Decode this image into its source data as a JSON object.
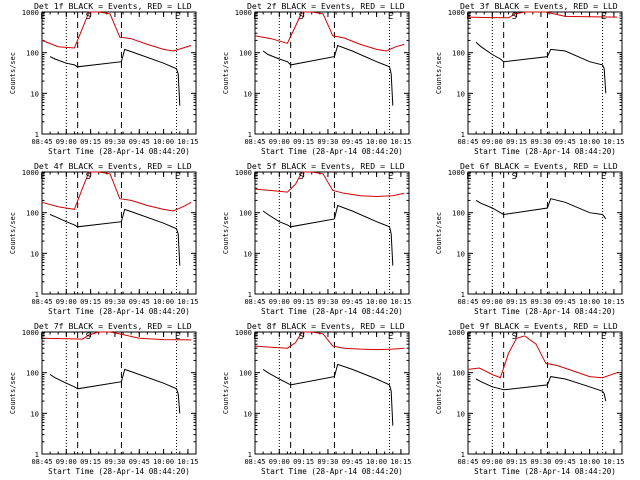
{
  "chart_data": [
    {
      "type": "line",
      "title": "Det 1f BLACK = Events, RED = LLD",
      "xlabel": "Start Time (28-Apr-14 08:44:20)",
      "ylabel": "Counts/sec",
      "xticks": [
        "08:45",
        "09:00",
        "09:15",
        "09:30",
        "09:45",
        "10:00",
        "10:15"
      ],
      "yticks": [
        "1",
        "10",
        "100",
        "1000"
      ],
      "ylim": [
        1,
        1000
      ],
      "log_y": true,
      "markers": [
        {
          "label": "E",
          "x": "08:45"
        },
        {
          "label": "S",
          "x": "09:13"
        },
        {
          "label": "E",
          "x": "10:08"
        }
      ],
      "dotted_lines": [
        "09:00",
        "10:08"
      ],
      "dashed_lines": [
        "09:07",
        "09:34"
      ],
      "series": [
        {
          "color": "#d40000",
          "x": [
            "08:45",
            "08:55",
            "09:05",
            "09:10",
            "09:14",
            "09:20",
            "09:27",
            "09:33",
            "09:40",
            "09:50",
            "10:00",
            "10:06",
            "10:12",
            "10:17"
          ],
          "values": [
            200,
            140,
            130,
            400,
            1000,
            1000,
            900,
            240,
            220,
            160,
            120,
            110,
            130,
            150
          ]
        },
        {
          "color": "#000000",
          "x": [
            "08:50",
            "08:53",
            "09:00",
            "09:05",
            "09:07",
            "09:34",
            "09:36",
            "09:45",
            "10:00",
            "10:08",
            "10:09",
            "10:10"
          ],
          "values": [
            80,
            70,
            55,
            50,
            45,
            60,
            120,
            90,
            55,
            40,
            30,
            5
          ]
        }
      ]
    },
    {
      "type": "line",
      "title": "Det 2f BLACK = Events, RED = LLD",
      "xlabel": "Start Time (28-Apr-14 08:44:20)",
      "ylabel": "Counts/sec",
      "xticks": [
        "08:45",
        "09:00",
        "09:15",
        "09:30",
        "09:45",
        "10:00",
        "10:15"
      ],
      "yticks": [
        "1",
        "10",
        "100",
        "1000"
      ],
      "ylim": [
        1,
        1000
      ],
      "log_y": true,
      "markers": [
        {
          "label": "E",
          "x": "08:45"
        },
        {
          "label": "S",
          "x": "09:13"
        },
        {
          "label": "E",
          "x": "10:08"
        }
      ],
      "dotted_lines": [
        "09:00",
        "10:08"
      ],
      "dashed_lines": [
        "09:07",
        "09:34"
      ],
      "series": [
        {
          "color": "#d40000",
          "x": [
            "08:45",
            "08:55",
            "09:05",
            "09:10",
            "09:14",
            "09:20",
            "09:27",
            "09:33",
            "09:40",
            "09:50",
            "10:00",
            "10:06",
            "10:12",
            "10:17"
          ],
          "values": [
            260,
            220,
            170,
            450,
            1000,
            1000,
            900,
            260,
            230,
            160,
            120,
            110,
            140,
            160
          ]
        },
        {
          "color": "#000000",
          "x": [
            "08:50",
            "08:53",
            "09:00",
            "09:05",
            "09:07",
            "09:34",
            "09:36",
            "09:45",
            "10:00",
            "10:08",
            "10:09",
            "10:10"
          ],
          "values": [
            110,
            90,
            70,
            60,
            50,
            80,
            150,
            110,
            60,
            45,
            30,
            5
          ]
        }
      ]
    },
    {
      "type": "line",
      "title": "Det 3f BLACK = Events, RED = LLD",
      "xlabel": "Start Time (28-Apr-14 08:44:20)",
      "ylabel": "Counts/sec",
      "xticks": [
        "08:45",
        "09:00",
        "09:15",
        "09:30",
        "09:45",
        "10:00",
        "10:15"
      ],
      "yticks": [
        "1",
        "10",
        "100",
        "1000"
      ],
      "ylim": [
        1,
        1000
      ],
      "log_y": true,
      "markers": [
        {
          "label": "E",
          "x": "08:45"
        },
        {
          "label": "S",
          "x": "09:13"
        },
        {
          "label": "E",
          "x": "10:08"
        }
      ],
      "dotted_lines": [
        "09:00",
        "10:08"
      ],
      "dashed_lines": [
        "09:07",
        "09:34"
      ],
      "series": [
        {
          "color": "#d40000",
          "x": [
            "08:45",
            "09:00",
            "09:10",
            "09:14",
            "09:20",
            "09:27",
            "09:33",
            "09:45",
            "10:00",
            "10:17"
          ],
          "values": [
            750,
            730,
            720,
            900,
            1000,
            1000,
            1000,
            780,
            760,
            750
          ]
        },
        {
          "color": "#000000",
          "x": [
            "08:50",
            "08:53",
            "09:00",
            "09:05",
            "09:07",
            "09:34",
            "09:36",
            "09:45",
            "10:00",
            "10:08",
            "10:09",
            "10:10"
          ],
          "values": [
            180,
            140,
            90,
            70,
            60,
            80,
            120,
            110,
            60,
            50,
            40,
            10
          ]
        }
      ]
    },
    {
      "type": "line",
      "title": "Det 4f BLACK = Events, RED = LLD",
      "xlabel": "Start Time (28-Apr-14 08:44:20)",
      "ylabel": "Counts/sec",
      "xticks": [
        "08:45",
        "09:00",
        "09:15",
        "09:30",
        "09:45",
        "10:00",
        "10:15"
      ],
      "yticks": [
        "1",
        "10",
        "100",
        "1000"
      ],
      "ylim": [
        1,
        1000
      ],
      "log_y": true,
      "markers": [
        {
          "label": "E",
          "x": "08:45"
        },
        {
          "label": "S",
          "x": "09:13"
        },
        {
          "label": "E",
          "x": "10:08"
        }
      ],
      "dotted_lines": [
        "09:00",
        "10:08"
      ],
      "dashed_lines": [
        "09:07",
        "09:34"
      ],
      "series": [
        {
          "color": "#d40000",
          "x": [
            "08:45",
            "08:55",
            "09:05",
            "09:10",
            "09:14",
            "09:20",
            "09:27",
            "09:33",
            "09:40",
            "09:50",
            "10:00",
            "10:06",
            "10:12",
            "10:17"
          ],
          "values": [
            180,
            140,
            120,
            400,
            1000,
            1000,
            900,
            220,
            200,
            150,
            120,
            110,
            140,
            180
          ]
        },
        {
          "color": "#000000",
          "x": [
            "08:50",
            "08:53",
            "09:00",
            "09:05",
            "09:07",
            "09:34",
            "09:36",
            "09:45",
            "10:00",
            "10:08",
            "10:09",
            "10:10"
          ],
          "values": [
            90,
            80,
            60,
            50,
            45,
            60,
            120,
            90,
            55,
            40,
            30,
            5
          ]
        }
      ]
    },
    {
      "type": "line",
      "title": "Det 5f BLACK = Events, RED = LLD",
      "xlabel": "Start Time (28-Apr-14 08:44:20)",
      "ylabel": "Counts/sec",
      "xticks": [
        "08:45",
        "09:00",
        "09:15",
        "09:30",
        "09:45",
        "10:00",
        "10:15"
      ],
      "yticks": [
        "1",
        "10",
        "100",
        "1000"
      ],
      "ylim": [
        1,
        1000
      ],
      "log_y": true,
      "markers": [
        {
          "label": "E",
          "x": "08:45"
        },
        {
          "label": "S",
          "x": "09:13"
        },
        {
          "label": "E",
          "x": "10:08"
        }
      ],
      "dotted_lines": [
        "09:00",
        "10:08"
      ],
      "dashed_lines": [
        "09:07",
        "09:34"
      ],
      "series": [
        {
          "color": "#d40000",
          "x": [
            "08:45",
            "08:55",
            "09:05",
            "09:10",
            "09:14",
            "09:20",
            "09:27",
            "09:33",
            "09:40",
            "09:50",
            "10:00",
            "10:10",
            "10:17"
          ],
          "values": [
            380,
            350,
            320,
            500,
            1000,
            1000,
            900,
            350,
            300,
            260,
            250,
            260,
            300
          ]
        },
        {
          "color": "#000000",
          "x": [
            "08:50",
            "08:53",
            "09:00",
            "09:05",
            "09:07",
            "09:34",
            "09:36",
            "09:45",
            "10:00",
            "10:08",
            "10:09",
            "10:10"
          ],
          "values": [
            110,
            90,
            60,
            50,
            45,
            70,
            150,
            110,
            60,
            45,
            30,
            5
          ]
        }
      ]
    },
    {
      "type": "line",
      "title": "Det 6f BLACK = Events, RED = LLD",
      "xlabel": "Start Time (28-Apr-14 08:44:20)",
      "ylabel": "Counts/sec",
      "xticks": [
        "08:45",
        "09:00",
        "09:15",
        "09:30",
        "09:45",
        "10:00",
        "10:15"
      ],
      "yticks": [
        "1",
        "10",
        "100",
        "1000"
      ],
      "ylim": [
        1,
        1000
      ],
      "log_y": true,
      "markers": [
        {
          "label": "E",
          "x": "08:45"
        },
        {
          "label": "S",
          "x": "09:13"
        },
        {
          "label": "E",
          "x": "10:08"
        }
      ],
      "dotted_lines": [
        "09:00",
        "10:08"
      ],
      "dashed_lines": [
        "09:07",
        "09:34"
      ],
      "series": [
        {
          "color": "#000000",
          "x": [
            "08:50",
            "08:53",
            "09:00",
            "09:05",
            "09:07",
            "09:34",
            "09:36",
            "09:45",
            "10:00",
            "10:08",
            "10:09",
            "10:10"
          ],
          "values": [
            200,
            170,
            130,
            100,
            90,
            130,
            220,
            180,
            100,
            90,
            80,
            70
          ]
        }
      ]
    },
    {
      "type": "line",
      "title": "Det 7f BLACK = Events, RED = LLD",
      "xlabel": "Start Time (28-Apr-14 08:44:20)",
      "ylabel": "Counts/sec",
      "xticks": [
        "08:45",
        "09:00",
        "09:15",
        "09:30",
        "09:45",
        "10:00",
        "10:15"
      ],
      "yticks": [
        "1",
        "10",
        "100",
        "1000"
      ],
      "ylim": [
        1,
        1000
      ],
      "log_y": true,
      "markers": [
        {
          "label": "E",
          "x": "08:45"
        },
        {
          "label": "S",
          "x": "09:13"
        },
        {
          "label": "E",
          "x": "10:08"
        }
      ],
      "dotted_lines": [
        "09:00",
        "10:08"
      ],
      "dashed_lines": [
        "09:07",
        "09:34"
      ],
      "series": [
        {
          "color": "#d40000",
          "x": [
            "08:45",
            "09:00",
            "09:10",
            "09:14",
            "09:20",
            "09:27",
            "09:33",
            "09:45",
            "10:00",
            "10:17"
          ],
          "values": [
            700,
            680,
            670,
            850,
            1000,
            1000,
            900,
            700,
            650,
            640
          ]
        },
        {
          "color": "#000000",
          "x": [
            "08:50",
            "08:53",
            "09:00",
            "09:05",
            "09:07",
            "09:34",
            "09:36",
            "09:45",
            "10:00",
            "10:08",
            "10:09",
            "10:10"
          ],
          "values": [
            90,
            75,
            55,
            45,
            40,
            60,
            120,
            90,
            55,
            40,
            30,
            10
          ]
        }
      ]
    },
    {
      "type": "line",
      "title": "Det 8f BLACK = Events, RED = LLD",
      "xlabel": "Start Time (28-Apr-14 08:44:20)",
      "ylabel": "Counts/sec",
      "xticks": [
        "08:45",
        "09:00",
        "09:15",
        "09:30",
        "09:45",
        "10:00",
        "10:15"
      ],
      "yticks": [
        "1",
        "10",
        "100",
        "1000"
      ],
      "ylim": [
        1,
        1000
      ],
      "log_y": true,
      "markers": [
        {
          "label": "E",
          "x": "08:45"
        },
        {
          "label": "S",
          "x": "09:13"
        },
        {
          "label": "E",
          "x": "10:08"
        }
      ],
      "dotted_lines": [
        "09:00",
        "10:08"
      ],
      "dashed_lines": [
        "09:07",
        "09:34"
      ],
      "series": [
        {
          "color": "#d40000",
          "x": [
            "08:45",
            "08:55",
            "09:05",
            "09:10",
            "09:14",
            "09:20",
            "09:27",
            "09:33",
            "09:40",
            "09:50",
            "10:00",
            "10:10",
            "10:17"
          ],
          "values": [
            450,
            420,
            400,
            550,
            1000,
            1000,
            900,
            450,
            400,
            380,
            370,
            380,
            400
          ]
        },
        {
          "color": "#000000",
          "x": [
            "08:50",
            "08:53",
            "09:00",
            "09:05",
            "09:07",
            "09:34",
            "09:36",
            "09:45",
            "10:00",
            "10:08",
            "10:09",
            "10:10"
          ],
          "values": [
            120,
            100,
            70,
            55,
            50,
            80,
            160,
            120,
            70,
            50,
            35,
            5
          ]
        }
      ]
    },
    {
      "type": "line",
      "title": "Det 9f BLACK = Events, RED = LLD",
      "xlabel": "Start Time (28-Apr-14 08:44:20)",
      "ylabel": "Counts/sec",
      "xticks": [
        "08:45",
        "09:00",
        "09:15",
        "09:30",
        "09:45",
        "10:00",
        "10:15"
      ],
      "yticks": [
        "1",
        "10",
        "100",
        "1000"
      ],
      "ylim": [
        1,
        1000
      ],
      "log_y": true,
      "markers": [
        {
          "label": "E",
          "x": "08:45"
        },
        {
          "label": "S",
          "x": "09:13"
        },
        {
          "label": "E",
          "x": "10:08"
        }
      ],
      "dotted_lines": [
        "09:00",
        "10:08"
      ],
      "dashed_lines": [
        "09:07",
        "09:34"
      ],
      "series": [
        {
          "color": "#d40000",
          "x": [
            "08:45",
            "08:52",
            "09:00",
            "09:05",
            "09:10",
            "09:15",
            "09:20",
            "09:27",
            "09:33",
            "09:40",
            "09:50",
            "10:00",
            "10:08",
            "10:17"
          ],
          "values": [
            120,
            130,
            90,
            75,
            300,
            700,
            800,
            500,
            170,
            150,
            110,
            80,
            75,
            100
          ]
        },
        {
          "color": "#000000",
          "x": [
            "08:50",
            "08:53",
            "09:00",
            "09:05",
            "09:07",
            "09:34",
            "09:36",
            "09:45",
            "10:00",
            "10:08",
            "10:09",
            "10:10"
          ],
          "values": [
            70,
            60,
            45,
            40,
            38,
            50,
            80,
            70,
            45,
            35,
            30,
            20
          ]
        }
      ]
    }
  ]
}
